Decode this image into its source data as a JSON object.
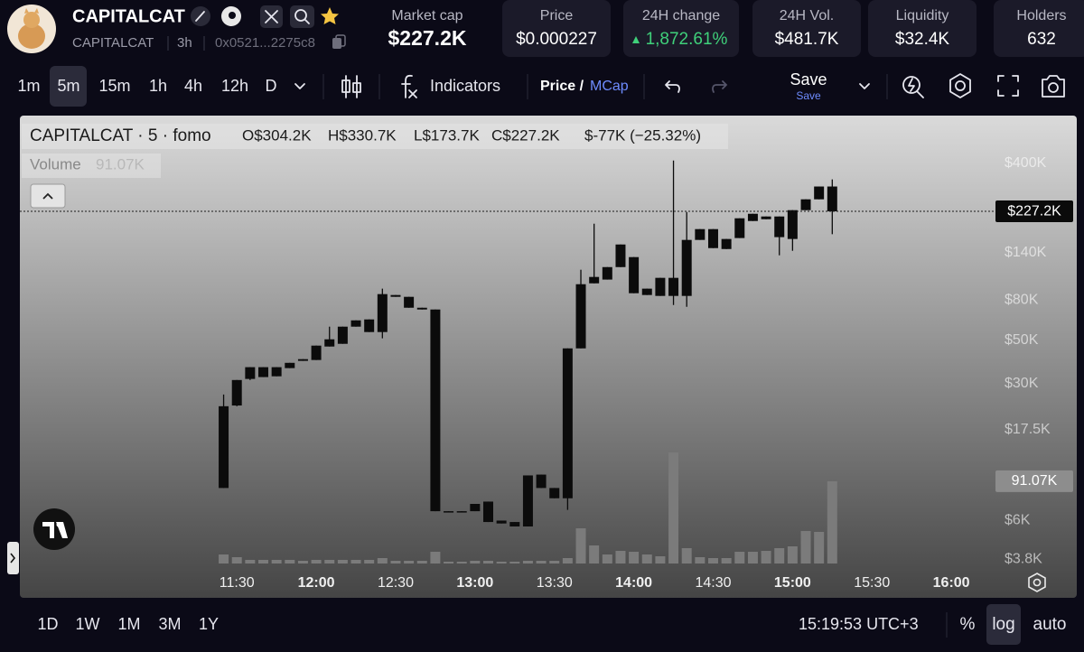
{
  "header": {
    "name": "CAPITALCAT",
    "ticker": "CAPITALCAT",
    "age": "3h",
    "address": "0x0521...2275c8",
    "stats": [
      {
        "label": "Market cap",
        "value": "$227.2K"
      },
      {
        "label": "Price",
        "value": "$0.000227"
      },
      {
        "label": "24H change",
        "value": "1,872.61%"
      },
      {
        "label": "24H Vol.",
        "value": "$481.7K"
      },
      {
        "label": "Liquidity",
        "value": "$32.4K"
      },
      {
        "label": "Holders",
        "value": "632"
      }
    ]
  },
  "toolbar": {
    "intervals": [
      "1m",
      "5m",
      "15m",
      "1h",
      "4h",
      "12h",
      "D"
    ],
    "indicators": "Indicators",
    "price": "Price /",
    "mcap": "MCap",
    "save": "Save",
    "save_sub": "Save"
  },
  "chart_data": {
    "type": "candlestick",
    "title": "CAPITALCAT · 5 · fomo",
    "ohlc_text": [
      "O$304.2K",
      "H$330.7K",
      "L$173.7K",
      "C$227.2K",
      "$-77K (−25.32%)"
    ],
    "volume_title": "Volume",
    "last_volume_label": "91.07K",
    "last_price_label": "$227.2K",
    "x": [
      "11:25",
      "11:30",
      "11:35",
      "11:40",
      "11:45",
      "11:50",
      "11:55",
      "12:00",
      "12:05",
      "12:10",
      "12:15",
      "12:20",
      "12:25",
      "12:30",
      "12:35",
      "12:40",
      "12:45",
      "12:50",
      "12:55",
      "13:00",
      "13:05",
      "13:10",
      "13:15",
      "13:20",
      "13:25",
      "13:30",
      "13:35",
      "13:40",
      "13:45",
      "13:50",
      "13:55",
      "14:00",
      "14:05",
      "14:10",
      "14:15",
      "14:20",
      "14:25",
      "14:30",
      "14:35",
      "14:40",
      "14:45",
      "14:50",
      "14:55",
      "15:00",
      "15:05",
      "15:10",
      "15:15"
    ],
    "open": [
      8800,
      23200,
      31700,
      32400,
      36400,
      36000,
      39200,
      39600,
      46400,
      47900,
      58600,
      63800,
      55000,
      85000,
      83200,
      73200,
      71700,
      6700,
      6600,
      6700,
      7500,
      6000,
      5900,
      5600,
      10300,
      8800,
      7800,
      45400,
      97500,
      101900,
      118000,
      132700,
      91600,
      84100,
      104000,
      84100,
      162400,
      184400,
      145900,
      166000,
      202800,
      213900,
      213900,
      164200,
      230400,
      261700,
      304200
    ],
    "high": [
      26400,
      31300,
      36400,
      36400,
      36400,
      38300,
      40000,
      46900,
      58600,
      58600,
      63100,
      63800,
      91600,
      85000,
      83200,
      73200,
      71700,
      6700,
      6700,
      7300,
      7500,
      6000,
      5900,
      10200,
      10300,
      8800,
      45400,
      114400,
      196500,
      118000,
      153900,
      132700,
      91600,
      104000,
      412900,
      225500,
      184400,
      184400,
      164200,
      209400,
      220800,
      213900,
      213900,
      230400,
      261700,
      304200,
      330700
    ],
    "low": [
      8800,
      23000,
      31300,
      32400,
      32700,
      36000,
      39200,
      39600,
      46400,
      47900,
      58600,
      55000,
      51100,
      83200,
      73200,
      71700,
      6700,
      6600,
      6600,
      6700,
      5900,
      5800,
      5600,
      5600,
      8800,
      7800,
      6800,
      45400,
      97500,
      101900,
      118000,
      86800,
      85000,
      84100,
      75600,
      74000,
      162400,
      147500,
      145900,
      166000,
      202800,
      207100,
      135500,
      142900,
      230400,
      261700,
      173700
    ],
    "close": [
      23000,
      31300,
      36400,
      36400,
      32700,
      38300,
      40000,
      46900,
      50500,
      58600,
      63100,
      55000,
      85900,
      83200,
      73200,
      71700,
      6700,
      6600,
      6700,
      7300,
      5900,
      5800,
      5600,
      10200,
      8800,
      7800,
      45400,
      96500,
      105100,
      118000,
      153900,
      86800,
      85000,
      104000,
      84100,
      162400,
      184400,
      147500,
      164200,
      209400,
      220800,
      207100,
      167800,
      230400,
      261700,
      304200,
      227200
    ],
    "volume": [
      10000,
      7000,
      4000,
      4000,
      4000,
      4000,
      3000,
      4000,
      4000,
      4000,
      4000,
      4000,
      6000,
      3000,
      3000,
      3000,
      13000,
      2000,
      2000,
      3000,
      3000,
      2000,
      2000,
      3000,
      3000,
      3000,
      6000,
      39000,
      20000,
      10000,
      14000,
      13000,
      10000,
      8000,
      123000,
      17000,
      7000,
      6000,
      6000,
      13000,
      13000,
      14000,
      17000,
      19000,
      36000,
      35000,
      91070
    ],
    "xlim": [
      "10:08",
      "16:16"
    ],
    "xticks": [
      "11:30",
      "12:00",
      "12:30",
      "13:00",
      "13:30",
      "14:00",
      "14:30",
      "15:00",
      "15:30",
      "16:00"
    ],
    "ylim": [
      3400,
      700000
    ],
    "yticks": [
      {
        "value": 400000,
        "label": "$400K"
      },
      {
        "value": 140000,
        "label": "$140K"
      },
      {
        "value": 80000,
        "label": "$80K"
      },
      {
        "value": 50000,
        "label": "$50K"
      },
      {
        "value": 30000,
        "label": "$30K"
      },
      {
        "value": 17500,
        "label": "$17.5K"
      },
      {
        "value": 6000,
        "label": "$6K"
      },
      {
        "value": 3800,
        "label": "$3.8K"
      }
    ],
    "log_scale": true,
    "candle_color": "#0b0b0b",
    "volume_color": "#7b7b7b"
  },
  "footer": {
    "ranges": [
      "1D",
      "1W",
      "1M",
      "3M",
      "1Y"
    ],
    "clock": "15:19:53 UTC+3",
    "percent": "%",
    "log": "log",
    "auto": "auto"
  }
}
